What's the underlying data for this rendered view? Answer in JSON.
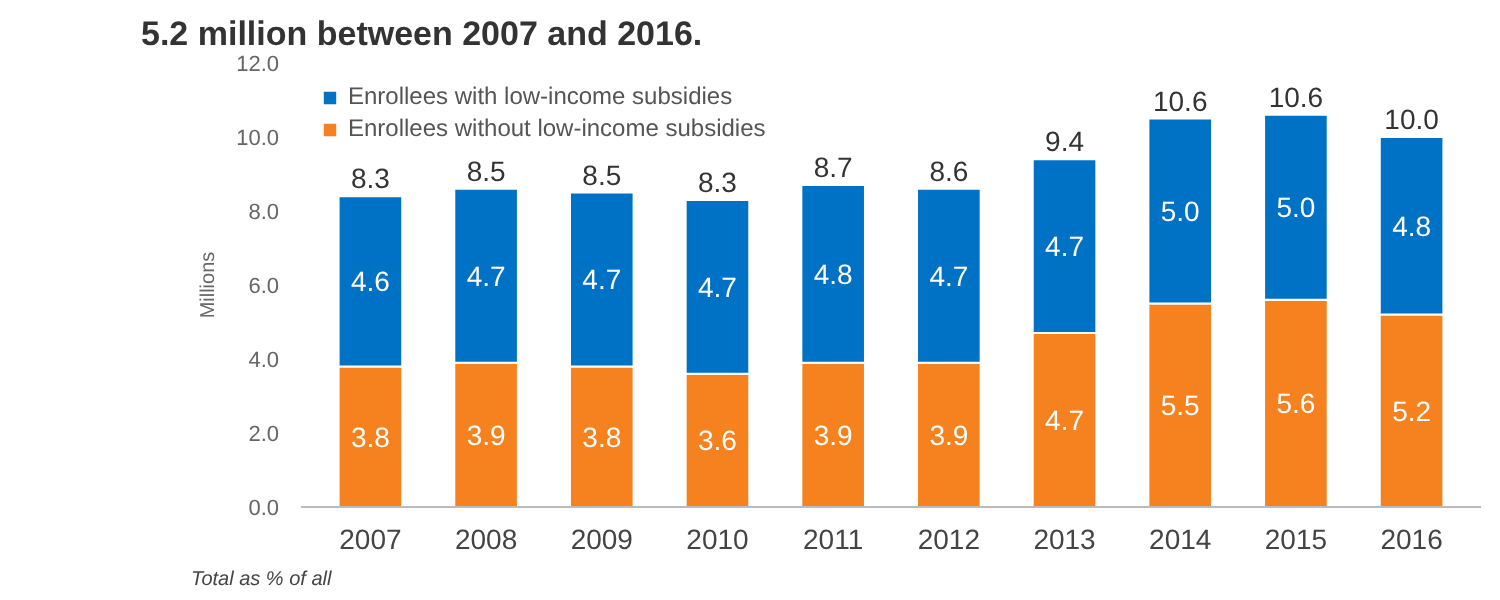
{
  "chart_data": {
    "type": "bar",
    "title": "5.2 million between 2007 and 2016.",
    "ylabel": "Millions",
    "categories": [
      "2007",
      "2008",
      "2009",
      "2010",
      "2011",
      "2012",
      "2013",
      "2014",
      "2015",
      "2016"
    ],
    "stacked": true,
    "series": [
      {
        "name": "Enrollees without low-income subsidies",
        "color": "#f5821f",
        "values": [
          3.8,
          3.9,
          3.8,
          3.6,
          3.9,
          3.9,
          4.7,
          5.5,
          5.6,
          5.2
        ],
        "value_labels": [
          "3.8",
          "3.9",
          "3.8",
          "3.6",
          "3.9",
          "3.9",
          "4.7",
          "5.5",
          "5.6",
          "5.2"
        ]
      },
      {
        "name": "Enrollees with low-income subsidies",
        "color": "#0072c6",
        "values": [
          4.6,
          4.7,
          4.7,
          4.7,
          4.8,
          4.7,
          4.7,
          5.0,
          5.0,
          4.8
        ],
        "value_labels": [
          "4.6",
          "4.7",
          "4.7",
          "4.7",
          "4.8",
          "4.7",
          "4.7",
          "5.0",
          "5.0",
          "4.8"
        ]
      }
    ],
    "totals": [
      "8.3",
      "8.5",
      "8.5",
      "8.3",
      "8.7",
      "8.6",
      "9.4",
      "10.6",
      "10.6",
      "10.0"
    ],
    "ylim": [
      0,
      12
    ],
    "yticks": [
      {
        "value": 0,
        "label": "0.0"
      },
      {
        "value": 2,
        "label": "2.0"
      },
      {
        "value": 4,
        "label": "4.0"
      },
      {
        "value": 6,
        "label": "6.0"
      },
      {
        "value": 8,
        "label": "8.0"
      },
      {
        "value": 10,
        "label": "10.0"
      },
      {
        "value": 12,
        "label": "12.0"
      }
    ],
    "grid": false,
    "legend": "top left",
    "annotations": [
      "Total as % of all"
    ]
  }
}
